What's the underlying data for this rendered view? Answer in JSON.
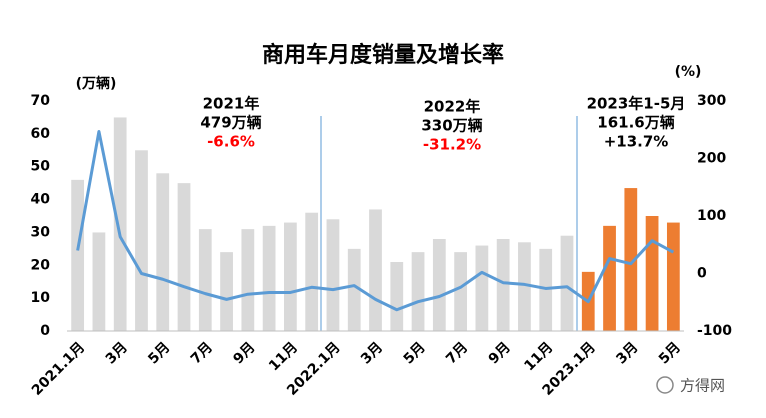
{
  "chart_data": {
    "type": "bar",
    "title": "商用车月度销量及增长率",
    "y_label": "(万辆)",
    "y2_label": "(%)",
    "categories": [
      "2021.1月",
      null,
      "3月",
      null,
      "5月",
      null,
      "7月",
      null,
      "9月",
      null,
      "11月",
      null,
      "2022.1月",
      null,
      "3月",
      null,
      "5月",
      null,
      "7月",
      null,
      "9月",
      null,
      "11月",
      null,
      "2023.1月",
      null,
      "3月",
      null,
      "5月"
    ],
    "series": [
      {
        "type": "bar",
        "colors": [
          "#d9d9d9",
          "#d9d9d9",
          "#d9d9d9",
          "#d9d9d9",
          "#d9d9d9",
          "#d9d9d9",
          "#d9d9d9",
          "#d9d9d9",
          "#d9d9d9",
          "#d9d9d9",
          "#d9d9d9",
          "#d9d9d9",
          "#d9d9d9",
          "#d9d9d9",
          "#d9d9d9",
          "#d9d9d9",
          "#d9d9d9",
          "#d9d9d9",
          "#d9d9d9",
          "#d9d9d9",
          "#d9d9d9",
          "#d9d9d9",
          "#d9d9d9",
          "#d9d9d9",
          "#ed7d31",
          "#ed7d31",
          "#ed7d31",
          "#ed7d31",
          "#ed7d31"
        ],
        "values": [
          46,
          30,
          65,
          55,
          48,
          45,
          31,
          24,
          31,
          32,
          33,
          36,
          34,
          25,
          37,
          21,
          24,
          28,
          24,
          26,
          28,
          27,
          25,
          29,
          18,
          32,
          43.5,
          35,
          33
        ]
      },
      {
        "type": "line",
        "axis": "y2",
        "color": "#5b9bd5",
        "values": [
          40,
          247,
          64,
          0,
          -10,
          -23,
          -35,
          -45,
          -36,
          -33,
          -33,
          -24,
          -28,
          -21,
          -45,
          -63,
          -49,
          -40,
          -24,
          2,
          -16,
          -19,
          -26,
          -23,
          -49,
          26,
          17,
          57,
          37
        ]
      }
    ],
    "ylim": [
      0,
      70
    ],
    "yticks": [
      0,
      10,
      20,
      30,
      40,
      50,
      60,
      70
    ],
    "y2lim": [
      -100,
      300
    ],
    "y2ticks": [
      -100,
      0,
      100,
      200,
      300
    ],
    "annotations": [
      {
        "lines": [
          "2021年",
          "479万辆",
          "-6.6%"
        ],
        "colors": [
          "#000000",
          "#000000",
          "#ff0000"
        ]
      },
      {
        "lines": [
          "2022年",
          "330万辆",
          "-31.2%"
        ],
        "colors": [
          "#000000",
          "#000000",
          "#ff0000"
        ]
      },
      {
        "lines": [
          "2023年1-5月",
          "161.6万辆",
          "+13.7%"
        ],
        "colors": [
          "#000000",
          "#000000",
          "#000000"
        ]
      }
    ],
    "watermark": "方得网"
  }
}
